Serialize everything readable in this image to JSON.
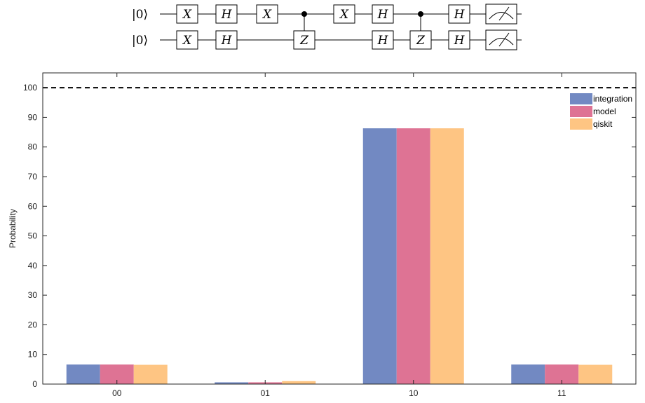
{
  "circuit": {
    "qubits": [
      {
        "init": "|0⟩",
        "gates": [
          {
            "type": "box",
            "label": "X"
          },
          {
            "type": "box",
            "label": "H"
          },
          {
            "type": "box",
            "label": "X"
          },
          {
            "type": "control"
          },
          {
            "type": "box",
            "label": "X"
          },
          {
            "type": "box",
            "label": "H"
          },
          {
            "type": "control"
          },
          {
            "type": "box",
            "label": "H"
          },
          {
            "type": "measure"
          }
        ]
      },
      {
        "init": "|0⟩",
        "gates": [
          {
            "type": "box",
            "label": "X"
          },
          {
            "type": "box",
            "label": "H"
          },
          {
            "type": "none"
          },
          {
            "type": "box",
            "label": "Z"
          },
          {
            "type": "none"
          },
          {
            "type": "box",
            "label": "H"
          },
          {
            "type": "box",
            "label": "Z"
          },
          {
            "type": "box",
            "label": "H"
          },
          {
            "type": "measure"
          }
        ]
      }
    ]
  },
  "chart_data": {
    "type": "bar",
    "categories": [
      "00",
      "01",
      "10",
      "11"
    ],
    "series": [
      {
        "name": "integration",
        "values": [
          6.6,
          0.6,
          86.3,
          6.6
        ],
        "color": "#7289c2"
      },
      {
        "name": "model",
        "values": [
          6.6,
          0.6,
          86.3,
          6.6
        ],
        "color": "#de7394"
      },
      {
        "name": "qiskit",
        "values": [
          6.5,
          1.0,
          86.3,
          6.5
        ],
        "color": "#fec583"
      }
    ],
    "ylabel": "Probability",
    "xlabel": "",
    "ylim": [
      0,
      105
    ],
    "yticks": [
      0,
      10,
      20,
      30,
      40,
      50,
      60,
      70,
      80,
      90,
      100
    ],
    "reference_line": {
      "value": 100,
      "style": "dashed"
    },
    "legend_position": "top-right",
    "grid": false
  }
}
